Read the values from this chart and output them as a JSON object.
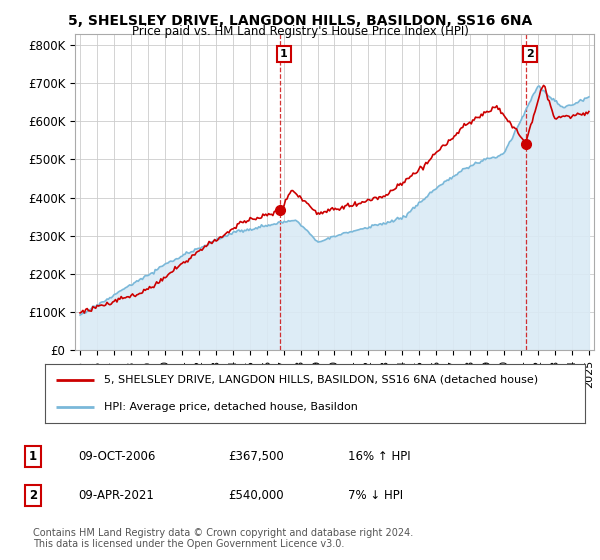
{
  "title1": "5, SHELSLEY DRIVE, LANGDON HILLS, BASILDON, SS16 6NA",
  "title2": "Price paid vs. HM Land Registry's House Price Index (HPI)",
  "ylabel_ticks": [
    "£0",
    "£100K",
    "£200K",
    "£300K",
    "£400K",
    "£500K",
    "£600K",
    "£700K",
    "£800K"
  ],
  "ytick_vals": [
    0,
    100000,
    200000,
    300000,
    400000,
    500000,
    600000,
    700000,
    800000
  ],
  "ylim": [
    0,
    830000
  ],
  "xlim_start": 1994.7,
  "xlim_end": 2025.3,
  "xtick_years": [
    1995,
    1996,
    1997,
    1998,
    1999,
    2000,
    2001,
    2002,
    2003,
    2004,
    2005,
    2006,
    2007,
    2008,
    2009,
    2010,
    2011,
    2012,
    2013,
    2014,
    2015,
    2016,
    2017,
    2018,
    2019,
    2020,
    2021,
    2022,
    2023,
    2024,
    2025
  ],
  "hpi_color": "#7ab8d9",
  "price_color": "#cc0000",
  "fill_color": "#daeaf5",
  "marker1_date": 2006.775,
  "marker1_price": 367500,
  "marker1_label": "1",
  "marker1_date_str": "09-OCT-2006",
  "marker1_price_str": "£367,500",
  "marker1_hpi_str": "16% ↑ HPI",
  "marker2_date": 2021.27,
  "marker2_price": 540000,
  "marker2_label": "2",
  "marker2_date_str": "09-APR-2021",
  "marker2_price_str": "£540,000",
  "marker2_hpi_str": "7% ↓ HPI",
  "legend_line1": "5, SHELSLEY DRIVE, LANGDON HILLS, BASILDON, SS16 6NA (detached house)",
  "legend_line2": "HPI: Average price, detached house, Basildon",
  "footer1": "Contains HM Land Registry data © Crown copyright and database right 2024.",
  "footer2": "This data is licensed under the Open Government Licence v3.0.",
  "bg_color": "#ffffff",
  "grid_color": "#cccccc",
  "spine_color": "#aaaaaa"
}
